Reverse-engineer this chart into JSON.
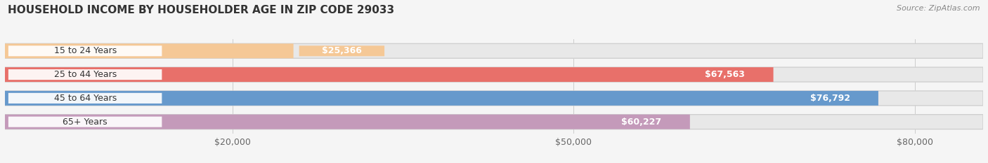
{
  "title": "HOUSEHOLD INCOME BY HOUSEHOLDER AGE IN ZIP CODE 29033",
  "source": "Source: ZipAtlas.com",
  "categories": [
    "15 to 24 Years",
    "25 to 44 Years",
    "45 to 64 Years",
    "65+ Years"
  ],
  "values": [
    25366,
    67563,
    76792,
    60227
  ],
  "bar_colors": [
    "#f5c896",
    "#e8706a",
    "#6699cc",
    "#c49aba"
  ],
  "value_labels": [
    "$25,366",
    "$67,563",
    "$76,792",
    "$60,227"
  ],
  "xlim": [
    0,
    86000
  ],
  "xticks": [
    20000,
    50000,
    80000
  ],
  "xtick_labels": [
    "$20,000",
    "$50,000",
    "$80,000"
  ],
  "title_fontsize": 11,
  "source_fontsize": 8,
  "label_fontsize": 9,
  "bar_height": 0.62,
  "background_color": "#f5f5f5",
  "bar_bg_color": "#e8e8e8",
  "bar_border_color": "#d0d0d0"
}
